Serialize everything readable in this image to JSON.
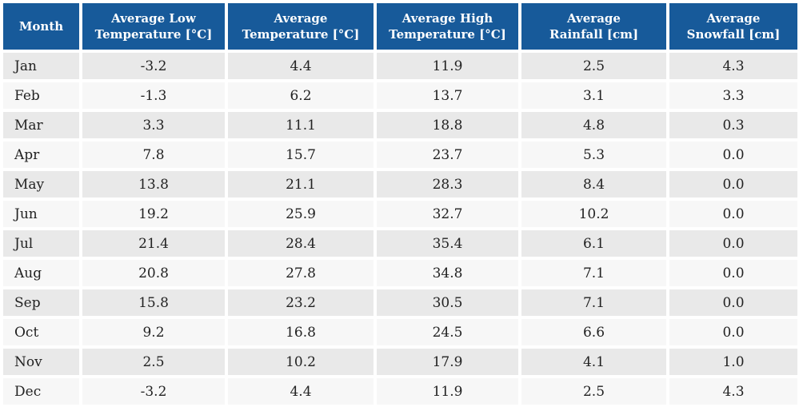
{
  "colors": {
    "header_bg": "#175a9a",
    "header_text": "#ffffff",
    "row_odd_bg": "#e9e9e9",
    "row_even_bg": "#f7f7f7",
    "body_text": "#222222",
    "page_bg": "#ffffff"
  },
  "chart_data": {
    "type": "table",
    "columns": [
      "Month",
      "Average Low\nTemperature [°C]",
      "Average\nTemperature [°C]",
      "Average High\nTemperature [°C]",
      "Average\nRainfall [cm]",
      "Average\nSnowfall [cm]"
    ],
    "rows": [
      {
        "month": "Jan",
        "values": [
          "-3.2",
          "4.4",
          "11.9",
          "2.5",
          "4.3"
        ]
      },
      {
        "month": "Feb",
        "values": [
          "-1.3",
          "6.2",
          "13.7",
          "3.1",
          "3.3"
        ]
      },
      {
        "month": "Mar",
        "values": [
          "3.3",
          "11.1",
          "18.8",
          "4.8",
          "0.3"
        ]
      },
      {
        "month": "Apr",
        "values": [
          "7.8",
          "15.7",
          "23.7",
          "5.3",
          "0.0"
        ]
      },
      {
        "month": "May",
        "values": [
          "13.8",
          "21.1",
          "28.3",
          "8.4",
          "0.0"
        ]
      },
      {
        "month": "Jun",
        "values": [
          "19.2",
          "25.9",
          "32.7",
          "10.2",
          "0.0"
        ]
      },
      {
        "month": "Jul",
        "values": [
          "21.4",
          "28.4",
          "35.4",
          "6.1",
          "0.0"
        ]
      },
      {
        "month": "Aug",
        "values": [
          "20.8",
          "27.8",
          "34.8",
          "7.1",
          "0.0"
        ]
      },
      {
        "month": "Sep",
        "values": [
          "15.8",
          "23.2",
          "30.5",
          "7.1",
          "0.0"
        ]
      },
      {
        "month": "Oct",
        "values": [
          "9.2",
          "16.8",
          "24.5",
          "6.6",
          "0.0"
        ]
      },
      {
        "month": "Nov",
        "values": [
          "2.5",
          "10.2",
          "17.9",
          "4.1",
          "1.0"
        ]
      },
      {
        "month": "Dec",
        "values": [
          "-3.2",
          "4.4",
          "11.9",
          "2.5",
          "4.3"
        ]
      }
    ]
  }
}
